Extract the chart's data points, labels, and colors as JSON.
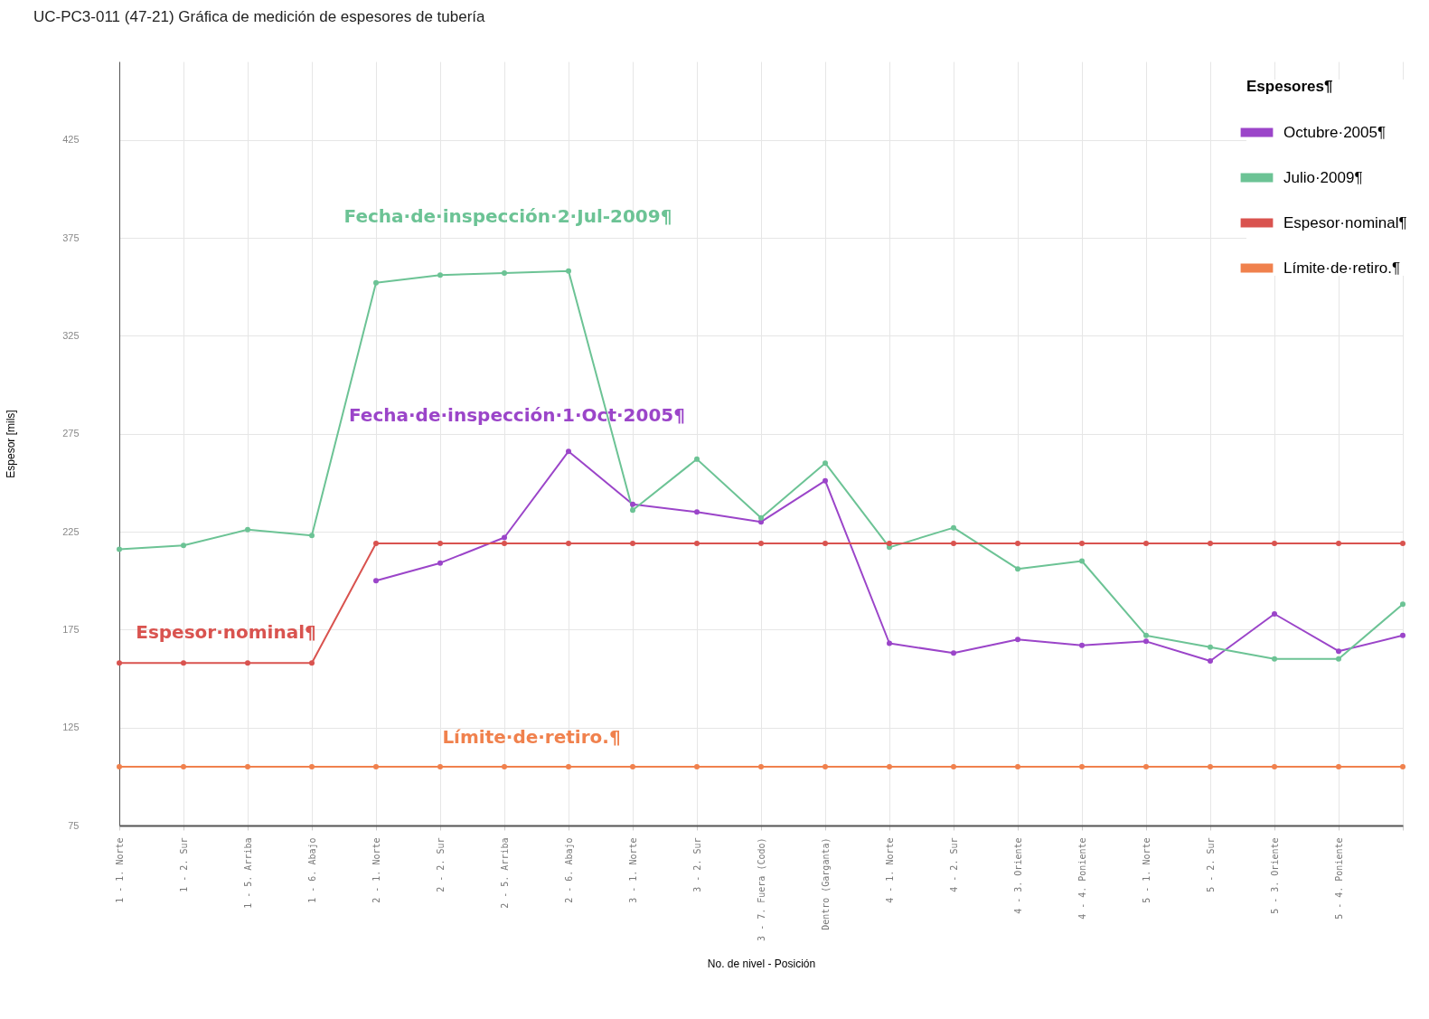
{
  "chart_data": {
    "type": "line",
    "title": "UC-PC3-011 (47-21) Gráfica de medición de espesores de tubería",
    "xlabel": "No. de nivel - Posición",
    "ylabel": "Espesor [mils]",
    "legend_title": "Espesores¶",
    "categories": [
      "1 - 1. Norte",
      "1 - 2. Sur",
      "1 - 5. Arriba",
      "1 - 6. Abajo",
      "2 - 1. Norte",
      "2 - 2. Sur",
      "2 - 5. Arriba",
      "2 - 6. Abajo",
      "3 - 1. Norte",
      "3 - 2. Sur",
      "3 - 7. Fuera (Codo)",
      "Dentro (Garganta)",
      "4 - 1. Norte",
      "4 - 2. Sur",
      "4 - 3. Oriente",
      "4 - 4. Poniente",
      "5 - 1. Norte",
      "5 - 2. Sur",
      "5 - 3. Oriente",
      "5 - 4. Poniente",
      null
    ],
    "series": [
      {
        "name": "Octubre·2005¶",
        "color": "#9b45c9",
        "values": [
          null,
          null,
          null,
          null,
          200,
          209,
          222,
          266,
          239,
          235,
          230,
          251,
          168,
          163,
          170,
          167,
          169,
          159,
          183,
          164,
          172
        ]
      },
      {
        "name": "Julio·2009¶",
        "color": "#6cc395",
        "values": [
          216,
          218,
          226,
          223,
          352,
          356,
          357,
          358,
          236,
          262,
          232,
          260,
          217,
          227,
          206,
          210,
          172,
          166,
          160,
          160,
          188
        ]
      },
      {
        "name": "Espesor·nominal¶",
        "color": "#d9534f",
        "values": [
          158,
          158,
          158,
          158,
          219,
          219,
          219,
          219,
          219,
          219,
          219,
          219,
          219,
          219,
          219,
          219,
          219,
          219,
          219,
          219,
          219
        ]
      },
      {
        "name": "Límite·de·retiro.¶",
        "color": "#f0814d",
        "values": [
          105,
          105,
          105,
          105,
          105,
          105,
          105,
          105,
          105,
          105,
          105,
          105,
          105,
          105,
          105,
          105,
          105,
          105,
          105,
          105,
          105
        ]
      }
    ],
    "annotations": [
      "Fecha·de·inspección·1·Oct·2005¶",
      "Fecha·de·inspección·2·Jul-2009¶",
      "Espesor·nominal¶",
      "Límite·de·retiro.¶"
    ],
    "ylim": [
      75,
      465
    ],
    "yticks": [
      75,
      125,
      175,
      225,
      275,
      325,
      375,
      425
    ],
    "grid": true,
    "legend": "top right",
    "marker": "circle",
    "line_style": "solid"
  }
}
